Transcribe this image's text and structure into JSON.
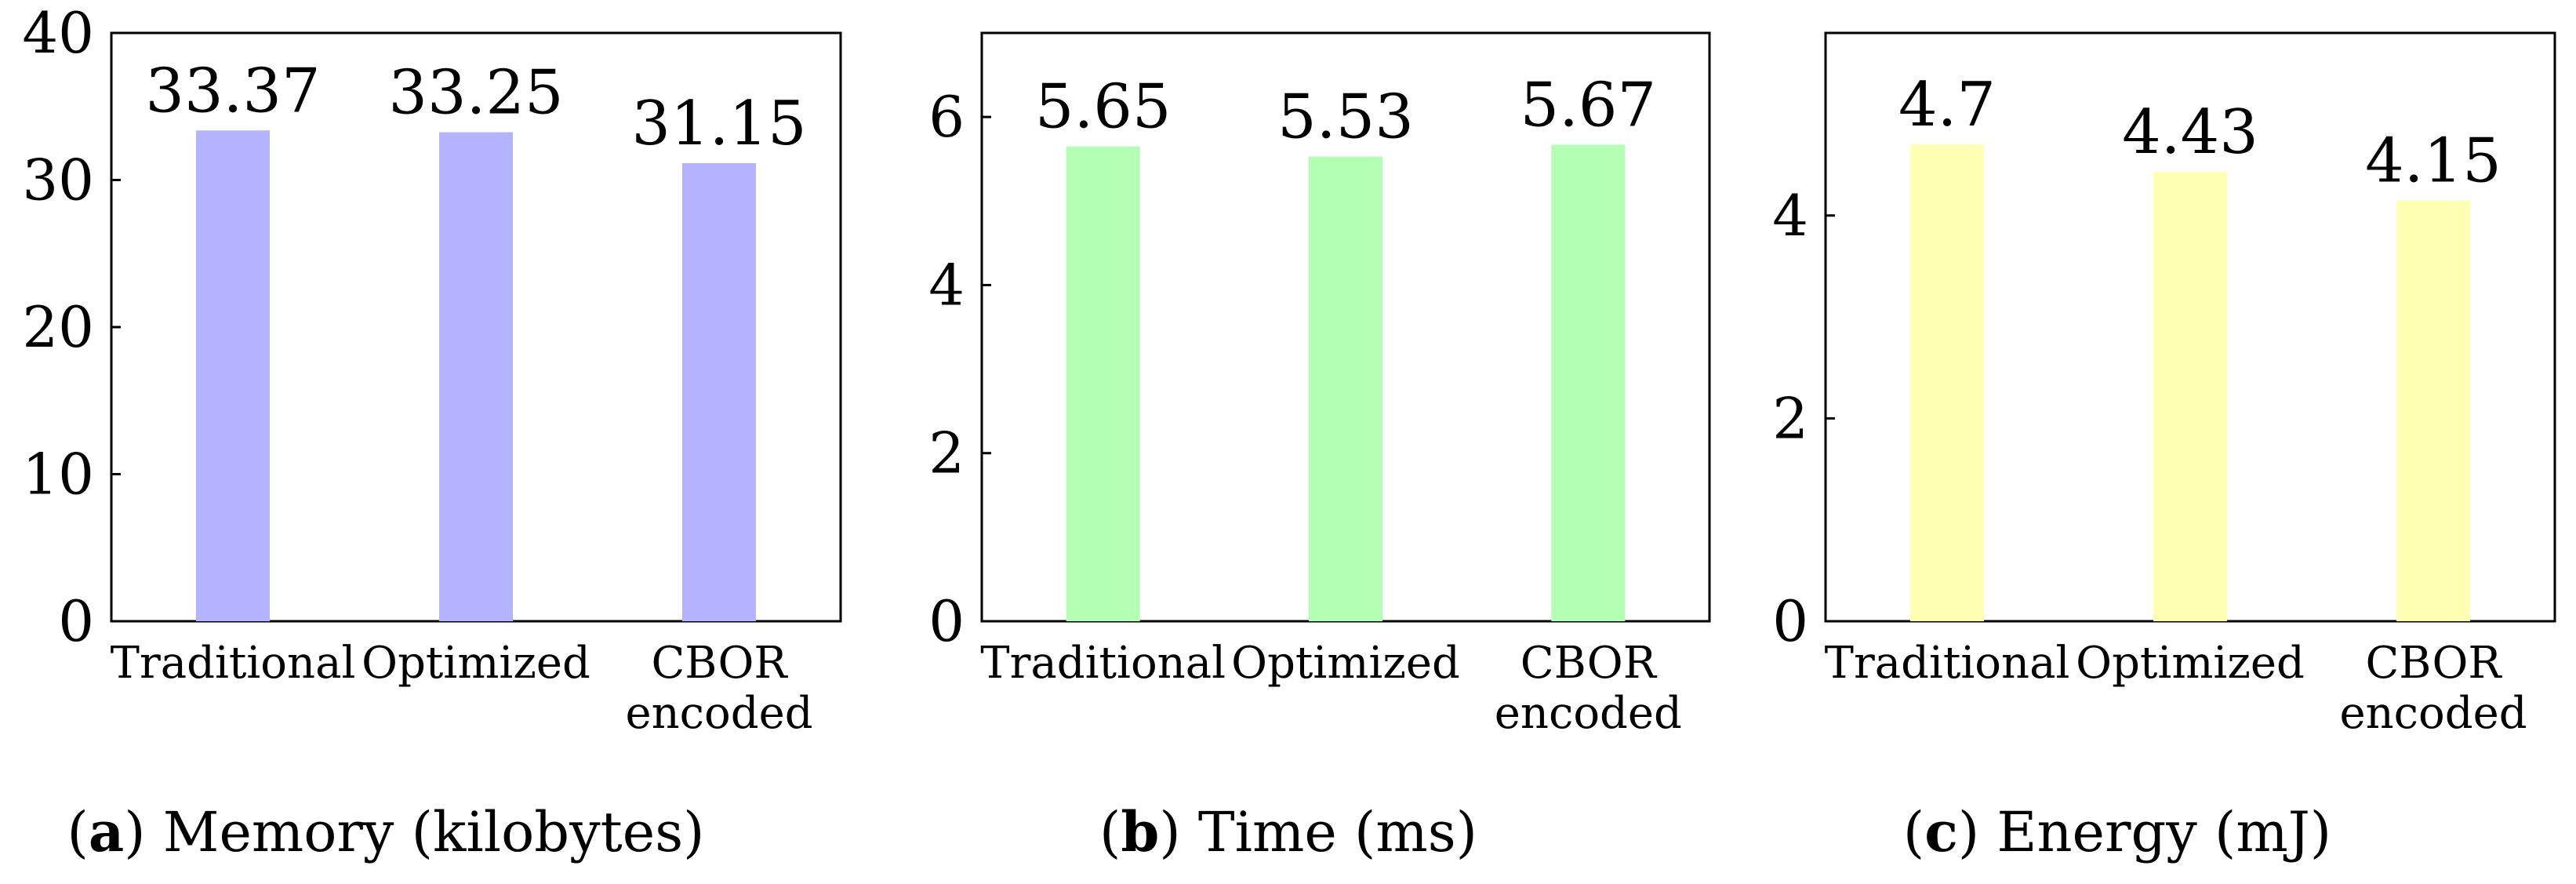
{
  "chart_data": [
    {
      "type": "bar",
      "caption_letter": "a",
      "caption_text": "Memory (kilobytes)",
      "categories": [
        "Traditional",
        "Optimized",
        "CBOR encoded"
      ],
      "values": [
        33.37,
        33.25,
        31.15
      ],
      "value_labels": [
        "33.37",
        "33.25",
        "31.15"
      ],
      "ylim": [
        0,
        40
      ],
      "yticks": [
        0,
        10,
        20,
        30,
        40
      ],
      "color": "#b3b3ff",
      "grid": false,
      "legend": "none"
    },
    {
      "type": "bar",
      "caption_letter": "b",
      "caption_text": "Time (ms)",
      "categories": [
        "Traditional",
        "Optimized",
        "CBOR encoded"
      ],
      "values": [
        5.65,
        5.53,
        5.67
      ],
      "value_labels": [
        "5.65",
        "5.53",
        "5.67"
      ],
      "ylim": [
        0,
        7
      ],
      "yticks": [
        0,
        2,
        4,
        6
      ],
      "color": "#b3ffb3",
      "grid": false,
      "legend": "none"
    },
    {
      "type": "bar",
      "caption_letter": "c",
      "caption_text": "Energy (mJ)",
      "categories": [
        "Traditional",
        "Optimized",
        "CBOR encoded"
      ],
      "values": [
        4.7,
        4.43,
        4.15
      ],
      "value_labels": [
        "4.7",
        "4.43",
        "4.15"
      ],
      "ylim": [
        0,
        5.8
      ],
      "yticks": [
        0,
        2,
        4
      ],
      "color": "#ffffb3",
      "grid": false,
      "legend": "none"
    }
  ]
}
